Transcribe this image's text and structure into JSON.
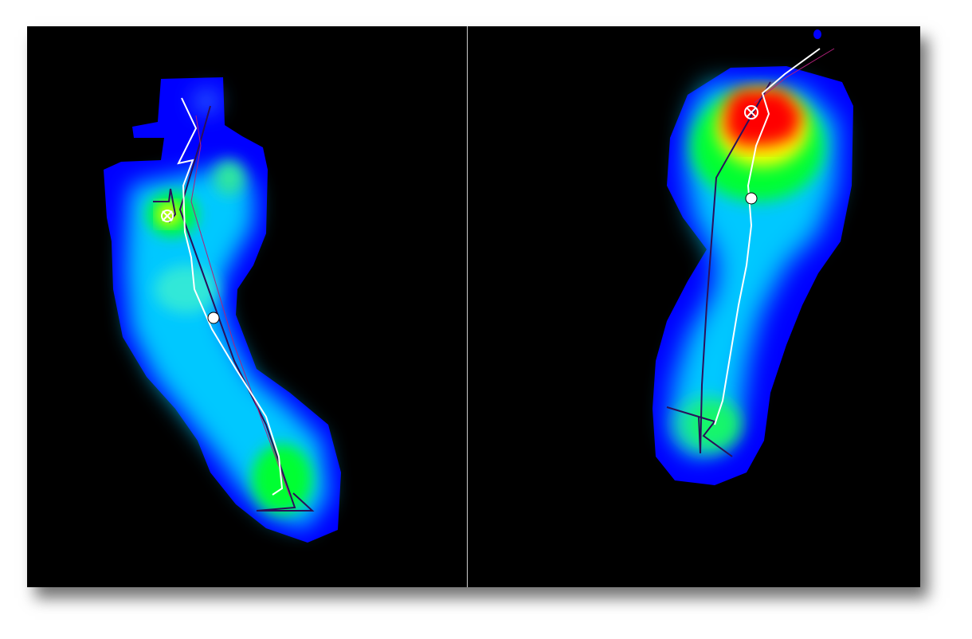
{
  "palette": {
    "background": "#000000",
    "divider": "#cfcfcf",
    "pressure_low": "#0000ff",
    "pressure_mid_low": "#00c8ff",
    "pressure_mid": "#00ff33",
    "pressure_mid_high": "#ffff00",
    "pressure_high": "#ff0000",
    "cop_trace_primary": "#ffffff",
    "cop_trace_secondary": "#2a0f5a",
    "cop_trace_tertiary": "#b0207a"
  },
  "panels": [
    {
      "id": "left-foot",
      "side": "left",
      "peak_level": "yellow"
    },
    {
      "id": "right-foot",
      "side": "right",
      "peak_level": "red"
    }
  ]
}
